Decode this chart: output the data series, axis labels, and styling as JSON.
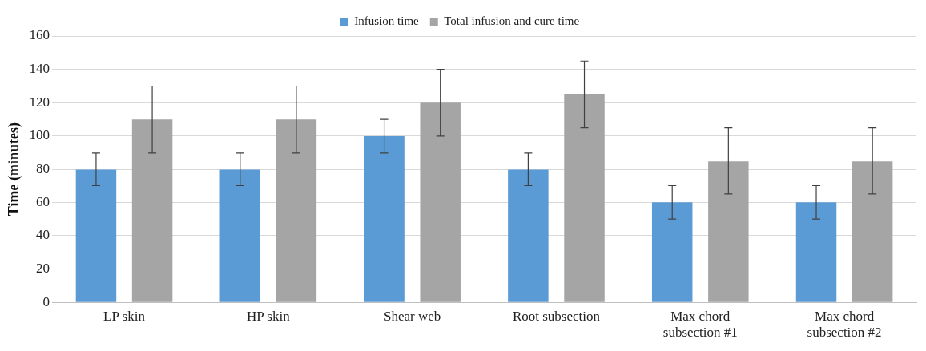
{
  "chart_data": {
    "type": "bar",
    "ylabel": "Time (minutes)",
    "categories": [
      "LP skin",
      "HP skin",
      "Shear web",
      "Root subsection",
      "Max chord subsection #1",
      "Max chord subsection #2"
    ],
    "series": [
      {
        "name": "Infusion time",
        "color": "#5b9bd5",
        "values": [
          80,
          80,
          100,
          80,
          60,
          60
        ],
        "errors": [
          10,
          10,
          10,
          10,
          10,
          10
        ]
      },
      {
        "name": "Total infusion and cure time",
        "color": "#a5a5a5",
        "values": [
          110,
          110,
          120,
          125,
          85,
          85
        ],
        "errors": [
          20,
          20,
          20,
          20,
          20,
          20
        ]
      }
    ],
    "ylim": [
      0,
      160
    ],
    "yticks": [
      0,
      20,
      40,
      60,
      80,
      100,
      120,
      140,
      160
    ],
    "grid": "y",
    "legend": "top"
  }
}
